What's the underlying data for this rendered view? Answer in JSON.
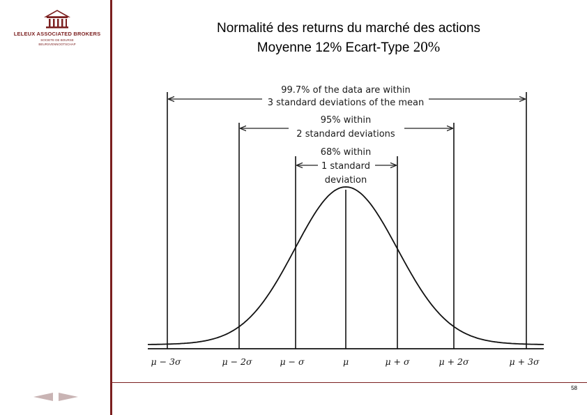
{
  "logo": {
    "icon": "building-columns-icon",
    "brand": "LELEUX ASSOCIATED BROKERS",
    "sub1": "SOCIETE DE BOURSE",
    "sub2": "BEURSVENNOOTSCHAP"
  },
  "title": {
    "line1": "Normalité des returns du marché des actions",
    "line2_text": "Moyenne 12% Ecart-Type ",
    "line2_value": "20%"
  },
  "diagram": {
    "annotations": {
      "three_sd": [
        "99.7% of the data are within",
        "3 standard deviations of the mean"
      ],
      "two_sd": [
        "95% within",
        "2 standard deviations"
      ],
      "one_sd": [
        "68% within",
        "1 standard",
        "deviation"
      ]
    },
    "axis_labels": [
      "μ − 3σ",
      "μ − 2σ",
      "μ − σ",
      "μ",
      "μ + σ",
      "μ + 2σ",
      "μ + 3σ"
    ]
  },
  "footer": {
    "page_number": "58",
    "nav_prev_icon": "arrow-left-icon",
    "nav_next_icon": "arrow-right-icon"
  },
  "colors": {
    "accent": "#7b1f1f",
    "nav": "#c9b4b4"
  }
}
